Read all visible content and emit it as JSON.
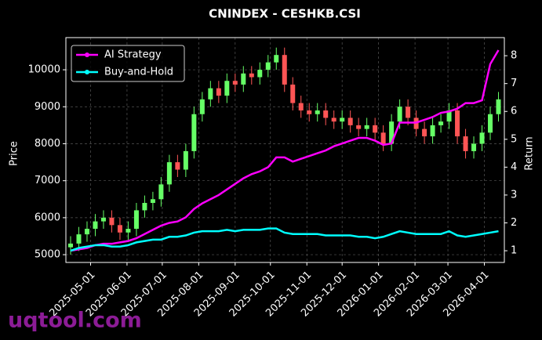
{
  "chart_data": {
    "type": "candlestick",
    "title": "CNINDEX - CESHKB.CSI",
    "ylabel": "Price",
    "y2label": "Return",
    "watermark": "uqtool.com",
    "x": [
      "2025-04-14",
      "2025-04-21",
      "2025-04-28",
      "2025-05-05",
      "2025-05-12",
      "2025-05-19",
      "2025-05-26",
      "2025-06-02",
      "2025-06-09",
      "2025-06-16",
      "2025-06-23",
      "2025-06-30",
      "2025-07-07",
      "2025-07-14",
      "2025-07-21",
      "2025-07-28",
      "2025-08-04",
      "2025-08-11",
      "2025-08-18",
      "2025-08-25",
      "2025-09-01",
      "2025-09-08",
      "2025-09-15",
      "2025-09-22",
      "2025-09-29",
      "2025-10-06",
      "2025-10-13",
      "2025-10-20",
      "2025-10-27",
      "2025-11-03",
      "2025-11-10",
      "2025-11-17",
      "2025-11-24",
      "2025-12-01",
      "2025-12-08",
      "2025-12-15",
      "2025-12-22",
      "2025-12-29",
      "2026-01-05",
      "2026-01-12",
      "2026-01-19",
      "2026-01-26",
      "2026-02-02",
      "2026-02-09",
      "2026-02-16",
      "2026-02-23",
      "2026-03-02",
      "2026-03-09",
      "2026-03-16",
      "2026-03-23",
      "2026-03-30",
      "2026-04-06",
      "2026-04-13"
    ],
    "open": [
      5200,
      5300,
      5550,
      5700,
      5900,
      6000,
      5800,
      5600,
      5700,
      6200,
      6400,
      6500,
      6900,
      7500,
      7300,
      7800,
      8800,
      9200,
      9500,
      9300,
      9700,
      9600,
      9900,
      9800,
      10000,
      10200,
      10400,
      9600,
      9100,
      8900,
      8800,
      8900,
      8700,
      8600,
      8700,
      8500,
      8400,
      8500,
      8300,
      8000,
      8600,
      9000,
      8700,
      8400,
      8200,
      8500,
      8600,
      8900,
      8200,
      7800,
      8000,
      8300,
      8800
    ],
    "high": [
      5500,
      5750,
      5900,
      6100,
      6200,
      6200,
      6000,
      5900,
      6400,
      6600,
      6700,
      7100,
      7700,
      7700,
      8000,
      9000,
      9400,
      9700,
      9700,
      9900,
      9900,
      10100,
      10100,
      10200,
      10400,
      10600,
      10600,
      9800,
      9300,
      9100,
      9100,
      9100,
      8900,
      8900,
      8900,
      8700,
      8700,
      8700,
      8500,
      8800,
      9200,
      9200,
      8900,
      8600,
      8700,
      8800,
      9100,
      9100,
      8400,
      8200,
      8500,
      9000,
      9400
    ],
    "low": [
      5000,
      5100,
      5350,
      5500,
      5700,
      5600,
      5400,
      5400,
      5500,
      6000,
      6200,
      6300,
      6700,
      7100,
      7100,
      7600,
      8600,
      9000,
      9100,
      9100,
      9400,
      9400,
      9600,
      9600,
      9800,
      10000,
      9400,
      8900,
      8700,
      8600,
      8600,
      8500,
      8400,
      8400,
      8300,
      8200,
      8200,
      8100,
      7800,
      7800,
      8400,
      8500,
      8200,
      8000,
      8000,
      8300,
      8400,
      8000,
      7600,
      7600,
      7800,
      8100,
      8600
    ],
    "close": [
      5300,
      5550,
      5700,
      5900,
      6000,
      5800,
      5600,
      5700,
      6200,
      6400,
      6500,
      6900,
      7500,
      7300,
      7800,
      8800,
      9200,
      9500,
      9300,
      9700,
      9600,
      9900,
      9800,
      10000,
      10200,
      10400,
      9600,
      9100,
      8900,
      8800,
      8900,
      8700,
      8600,
      8700,
      8500,
      8400,
      8500,
      8300,
      8000,
      8600,
      9000,
      8700,
      8400,
      8200,
      8500,
      8600,
      8900,
      8200,
      7800,
      8000,
      8300,
      8800,
      9200
    ],
    "up_color": "#66ff66",
    "down_color": "#ff5555",
    "series": [
      {
        "name": "AI Strategy",
        "color": "#ff00ff",
        "axis": "y2",
        "values": [
          1.0,
          1.05,
          1.1,
          1.2,
          1.25,
          1.25,
          1.3,
          1.35,
          1.45,
          1.6,
          1.75,
          1.9,
          2.0,
          2.05,
          2.2,
          2.5,
          2.7,
          2.85,
          3.0,
          3.2,
          3.4,
          3.6,
          3.75,
          3.85,
          4.0,
          4.35,
          4.35,
          4.2,
          4.3,
          4.4,
          4.5,
          4.6,
          4.75,
          4.85,
          4.95,
          5.05,
          5.05,
          4.95,
          4.8,
          4.85,
          5.6,
          5.6,
          5.6,
          5.7,
          5.8,
          5.95,
          6.0,
          6.1,
          6.3,
          6.3,
          6.4,
          7.7,
          8.2
        ]
      },
      {
        "name": "Buy-and-Hold",
        "color": "#00ffff",
        "axis": "y2",
        "values": [
          1.0,
          1.1,
          1.15,
          1.2,
          1.2,
          1.15,
          1.15,
          1.2,
          1.3,
          1.35,
          1.4,
          1.4,
          1.5,
          1.5,
          1.55,
          1.65,
          1.7,
          1.7,
          1.7,
          1.75,
          1.7,
          1.75,
          1.75,
          1.75,
          1.8,
          1.8,
          1.65,
          1.6,
          1.6,
          1.6,
          1.6,
          1.55,
          1.55,
          1.55,
          1.55,
          1.5,
          1.5,
          1.45,
          1.5,
          1.6,
          1.7,
          1.65,
          1.6,
          1.6,
          1.6,
          1.6,
          1.7,
          1.55,
          1.5,
          1.55,
          1.6,
          1.65,
          1.7
        ]
      }
    ],
    "xlim": [
      "2025-04-10",
      "2026-04-18"
    ],
    "xticks": [
      "2025-05-01",
      "2025-06-01",
      "2025-07-01",
      "2025-08-01",
      "2025-09-01",
      "2025-10-01",
      "2025-11-01",
      "2025-12-01",
      "2026-01-01",
      "2026-02-01",
      "2026-03-01",
      "2026-04-01"
    ],
    "ylim": [
      4790,
      10870
    ],
    "yticks": [
      5000,
      6000,
      7000,
      8000,
      9000,
      10000
    ],
    "y2lim": [
      0.58,
      8.65
    ],
    "y2ticks": [
      1,
      2,
      3,
      4,
      5,
      6,
      7,
      8
    ],
    "grid": true,
    "legend": "upper left"
  }
}
